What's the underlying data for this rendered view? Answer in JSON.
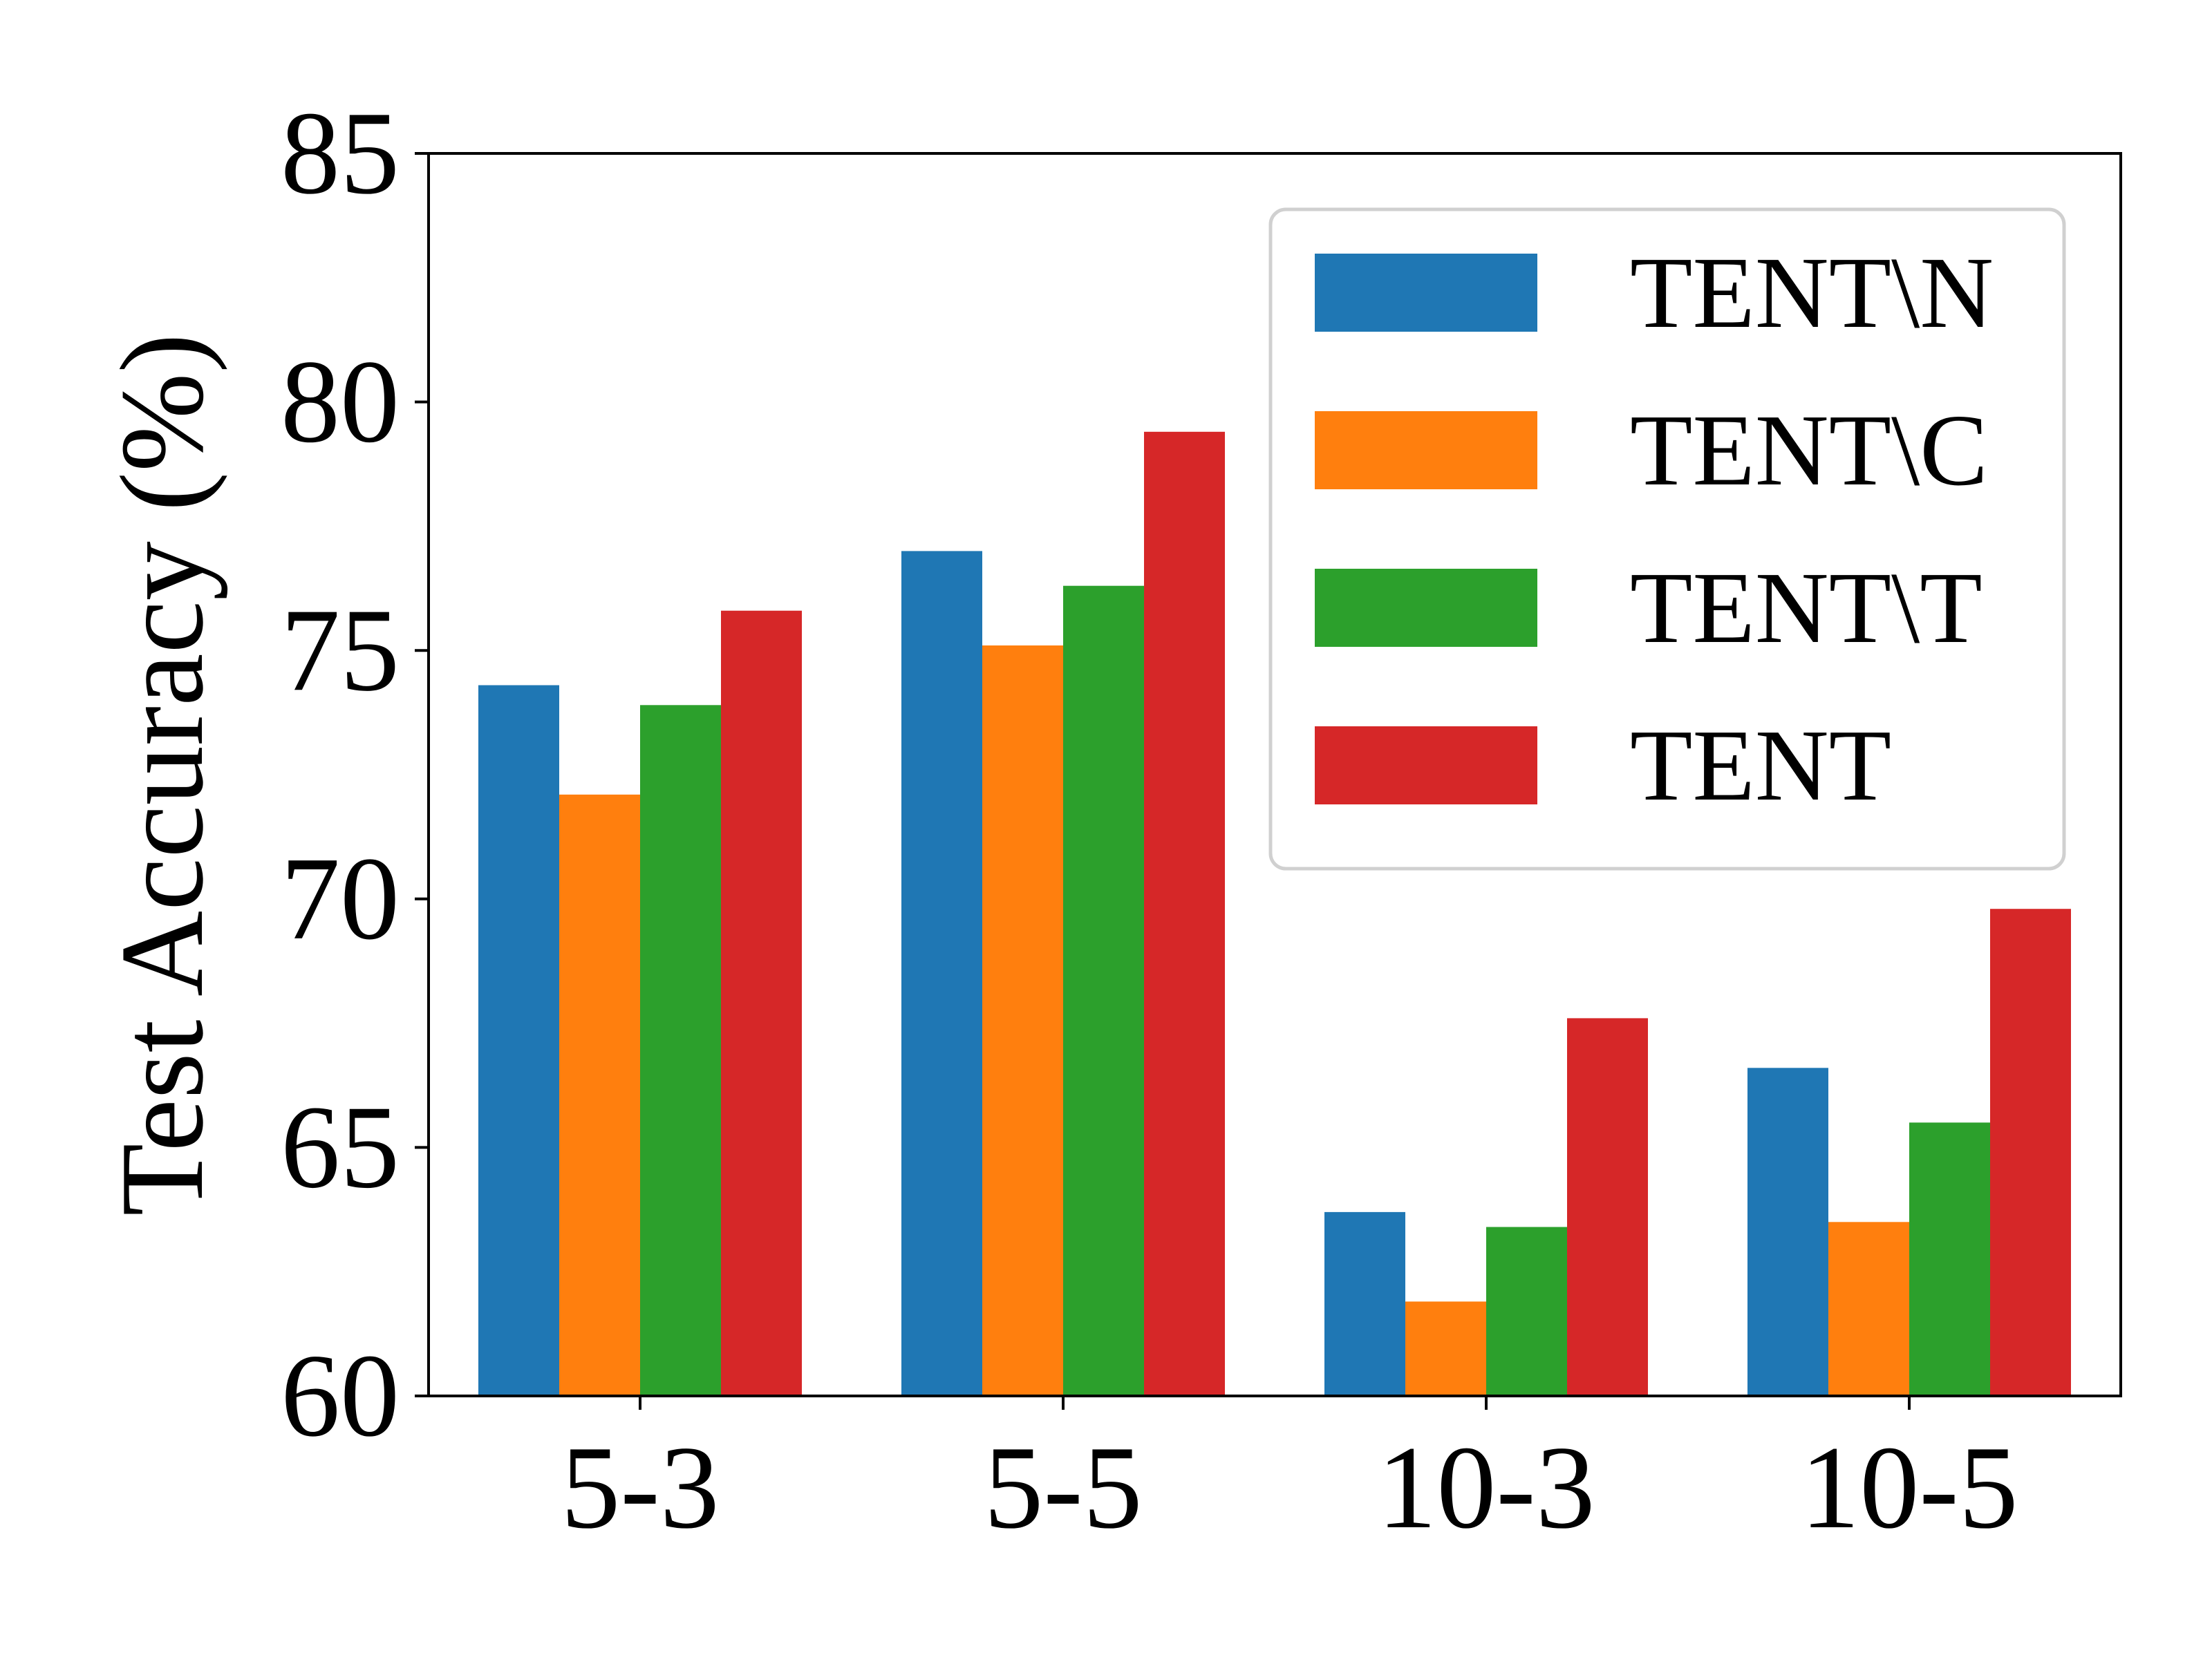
{
  "chart_data": {
    "type": "bar",
    "title": "",
    "xlabel": "",
    "ylabel": "Test Accuracy (%)",
    "categories": [
      "5-3",
      "5-5",
      "10-3",
      "10-5"
    ],
    "series": [
      {
        "name": "TENT\\N",
        "color": "#1f77b4",
        "values": [
          74.3,
          77.0,
          63.7,
          66.6
        ]
      },
      {
        "name": "TENT\\C",
        "color": "#ff7f0e",
        "values": [
          72.1,
          75.1,
          61.9,
          63.5
        ]
      },
      {
        "name": "TENT\\T",
        "color": "#2ca02c",
        "values": [
          73.9,
          76.3,
          63.4,
          65.5
        ]
      },
      {
        "name": "TENT",
        "color": "#d62728",
        "values": [
          75.8,
          79.4,
          67.6,
          69.8
        ]
      }
    ],
    "ylim": [
      60,
      85
    ],
    "yticks": [
      60,
      65,
      70,
      75,
      80,
      85
    ],
    "legend_position": "top-right",
    "grid": false
  }
}
